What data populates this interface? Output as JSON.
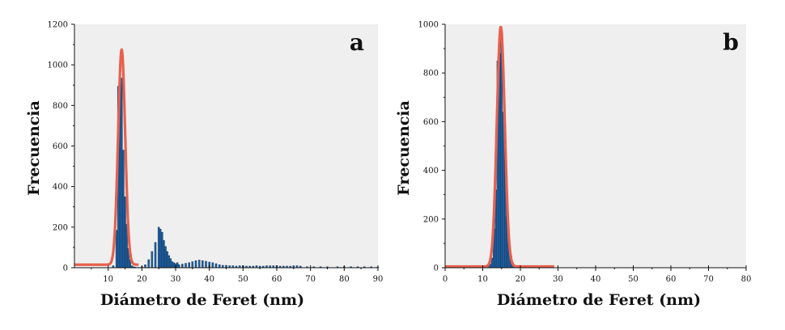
{
  "chart_data": [
    {
      "type": "bar",
      "panel_label": "a",
      "xlabel": "Diámetro de Feret (nm)",
      "ylabel": "Frecuencia",
      "xlim": [
        0,
        90
      ],
      "ylim": [
        0,
        1200
      ],
      "xticks": [
        10,
        20,
        30,
        40,
        50,
        60,
        70,
        80,
        90
      ],
      "yticks": [
        0,
        200,
        400,
        600,
        800,
        1000,
        1200
      ],
      "grid": false,
      "background": "#efefef",
      "bar_color": "#1f5fa0",
      "fit_color": "#e8604c",
      "bars": {
        "x": [
          11.5,
          12.5,
          13.0,
          13.5,
          14.0,
          14.5,
          15.0,
          15.5,
          16.0,
          16.5,
          17.0,
          17.5,
          18.0,
          19.0,
          20.0,
          21.0,
          22.0,
          23.0,
          24.0,
          25.0,
          25.5,
          26.0,
          26.5,
          27.0,
          27.5,
          28.0,
          28.5,
          29.0,
          29.5,
          30.0,
          30.5,
          31.0,
          32.0,
          33.0,
          34.0,
          35.0,
          36.0,
          37.0,
          38.0,
          39.0,
          40.0,
          41.0,
          42.0,
          43.0,
          44.0,
          45.0,
          46.0,
          47.0,
          48.0,
          49.0,
          50.0,
          51.0,
          52.0,
          53.0,
          54.0,
          55.0,
          56.0,
          57.0,
          58.0,
          59.0,
          60.0,
          61.0,
          62.0,
          63.0,
          64.0,
          65.0,
          66.0,
          67.0,
          69.0,
          71.0,
          73.0,
          75.0,
          78.0,
          80.0,
          82.0,
          84.0,
          86.0,
          88.0,
          90.0
        ],
        "values": [
          10,
          185,
          895,
          980,
          935,
          580,
          350,
          215,
          95,
          40,
          10,
          5,
          3,
          2,
          5,
          15,
          40,
          80,
          125,
          200,
          190,
          175,
          135,
          105,
          80,
          60,
          45,
          30,
          25,
          20,
          25,
          15,
          18,
          22,
          25,
          30,
          35,
          38,
          35,
          32,
          28,
          25,
          20,
          15,
          12,
          12,
          10,
          10,
          8,
          10,
          10,
          8,
          8,
          8,
          10,
          8,
          8,
          10,
          10,
          10,
          10,
          8,
          8,
          8,
          8,
          10,
          10,
          8,
          5,
          5,
          5,
          5,
          5,
          5,
          5,
          5,
          5,
          5,
          3
        ],
        "width": 0.5
      },
      "fit": {
        "model": "gaussian",
        "center": 14.0,
        "sigma": 1.05,
        "amplitude": 1075,
        "baseline": 15,
        "x_range": [
          0,
          19
        ]
      }
    },
    {
      "type": "bar",
      "panel_label": "b",
      "xlabel": "Diámetro de Feret (nm)",
      "ylabel": "Frecuencia",
      "xlim": [
        0,
        80
      ],
      "ylim": [
        0,
        1000
      ],
      "xticks": [
        0,
        10,
        20,
        30,
        40,
        50,
        60,
        70,
        80
      ],
      "yticks": [
        0,
        200,
        400,
        600,
        800,
        1000
      ],
      "grid": false,
      "background": "#efefef",
      "bar_color": "#1f5fa0",
      "fit_color": "#e8604c",
      "bars": {
        "x": [
          11.5,
          12.0,
          12.5,
          13.0,
          13.5,
          14.0,
          14.5,
          15.0,
          15.5,
          16.0,
          16.5,
          17.0,
          17.5,
          18.0,
          18.5,
          19.0
        ],
        "values": [
          5,
          15,
          40,
          160,
          320,
          850,
          880,
          960,
          640,
          500,
          210,
          100,
          50,
          20,
          8,
          3
        ],
        "width": 0.5
      },
      "fit": {
        "model": "gaussian",
        "center": 14.8,
        "sigma": 1.05,
        "amplitude": 990,
        "baseline": 5,
        "x_range": [
          0,
          29
        ]
      }
    }
  ]
}
